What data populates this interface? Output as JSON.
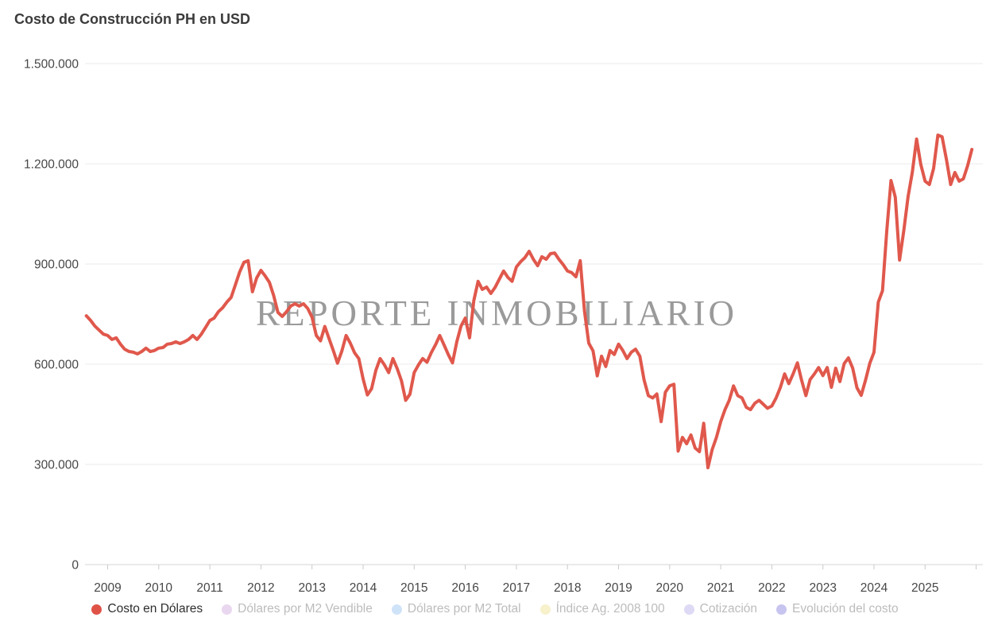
{
  "title": "Costo de Construcción PH en USD",
  "watermark": "REPORTE INMOBILIARIO",
  "legend": {
    "items": [
      {
        "label": "Costo en Dólares",
        "color": "#df5347",
        "active": true
      },
      {
        "label": "Dólares por M2 Vendible",
        "color": "#e9d7ef",
        "active": false
      },
      {
        "label": "Dólares por M2 Total",
        "color": "#cfe3f8",
        "active": false
      },
      {
        "label": "Índice Ag. 2008 100",
        "color": "#f7f1cc",
        "active": false
      },
      {
        "label": "Cotización",
        "color": "#ded9f4",
        "active": false
      },
      {
        "label": "Evolución del costo",
        "color": "#c7c5ef",
        "active": false
      }
    ]
  },
  "chart_data": {
    "type": "line",
    "title": "Costo de Construcción PH en USD",
    "frequency": "monthly",
    "xlim": [
      "2008-08",
      "2025-12"
    ],
    "ylim": [
      0,
      1500000
    ],
    "grid": true,
    "legend_position": "bottom",
    "y_ticks": [
      {
        "label": "1.500.000",
        "value": 1500000
      },
      {
        "label": "1.200.000",
        "value": 1200000
      },
      {
        "label": "900.000",
        "value": 900000
      },
      {
        "label": "600.000",
        "value": 600000
      },
      {
        "label": "300.000",
        "value": 300000
      },
      {
        "label": "0",
        "value": 0
      }
    ],
    "x_tick_years": [
      2009,
      2010,
      2011,
      2012,
      2013,
      2014,
      2015,
      2016,
      2017,
      2018,
      2019,
      2020,
      2021,
      2022,
      2023,
      2024,
      2025
    ],
    "series": [
      {
        "name": "Costo en Dólares",
        "color": "#e0584c",
        "start_month": "2008-08",
        "values": [
          745000,
          731000,
          714000,
          702000,
          690000,
          686000,
          674000,
          679000,
          660000,
          645000,
          638000,
          636000,
          631000,
          638000,
          648000,
          638000,
          641000,
          648000,
          650000,
          660000,
          662000,
          667000,
          662000,
          667000,
          674000,
          686000,
          674000,
          690000,
          710000,
          731000,
          738000,
          757000,
          769000,
          786000,
          800000,
          838000,
          876000,
          905000,
          910000,
          817000,
          858000,
          881000,
          864000,
          845000,
          805000,
          755000,
          743000,
          757000,
          774000,
          781000,
          774000,
          781000,
          767000,
          741000,
          686000,
          670000,
          713000,
          677000,
          641000,
          603000,
          639000,
          686000,
          663000,
          634000,
          617000,
          556000,
          508000,
          527000,
          582000,
          617000,
          598000,
          575000,
          617000,
          587000,
          551000,
          492000,
          510000,
          575000,
          598000,
          617000,
          606000,
          634000,
          658000,
          686000,
          658000,
          629000,
          604000,
          667000,
          714000,
          738000,
          679000,
          790000,
          848000,
          824000,
          831000,
          812000,
          830000,
          855000,
          879000,
          860000,
          848000,
          891000,
          907000,
          919000,
          938000,
          914000,
          895000,
          922000,
          914000,
          931000,
          933000,
          914000,
          898000,
          879000,
          874000,
          862000,
          910000,
          760000,
          663000,
          640000,
          565000,
          624000,
          593000,
          641000,
          629000,
          660000,
          641000,
          617000,
          636000,
          645000,
          624000,
          553000,
          506000,
          499000,
          511000,
          428000,
          516000,
          535000,
          540000,
          340000,
          381000,
          362000,
          388000,
          349000,
          338000,
          423000,
          290000,
          345000,
          381000,
          428000,
          464000,
          492000,
          535000,
          506000,
          499000,
          471000,
          464000,
          483000,
          492000,
          480000,
          468000,
          475000,
          499000,
          530000,
          571000,
          542000,
          571000,
          604000,
          552000,
          506000,
          554000,
          571000,
          590000,
          566000,
          590000,
          531000,
          588000,
          548000,
          602000,
          619000,
          588000,
          529000,
          507000,
          552000,
          602000,
          636000,
          786000,
          820000,
          1000000,
          1150000,
          1100000,
          912000,
          1000000,
          1102000,
          1174000,
          1274000,
          1198000,
          1148000,
          1138000,
          1186000,
          1286000,
          1281000,
          1214000,
          1138000,
          1174000,
          1148000,
          1155000,
          1195000,
          1243000
        ]
      }
    ]
  }
}
